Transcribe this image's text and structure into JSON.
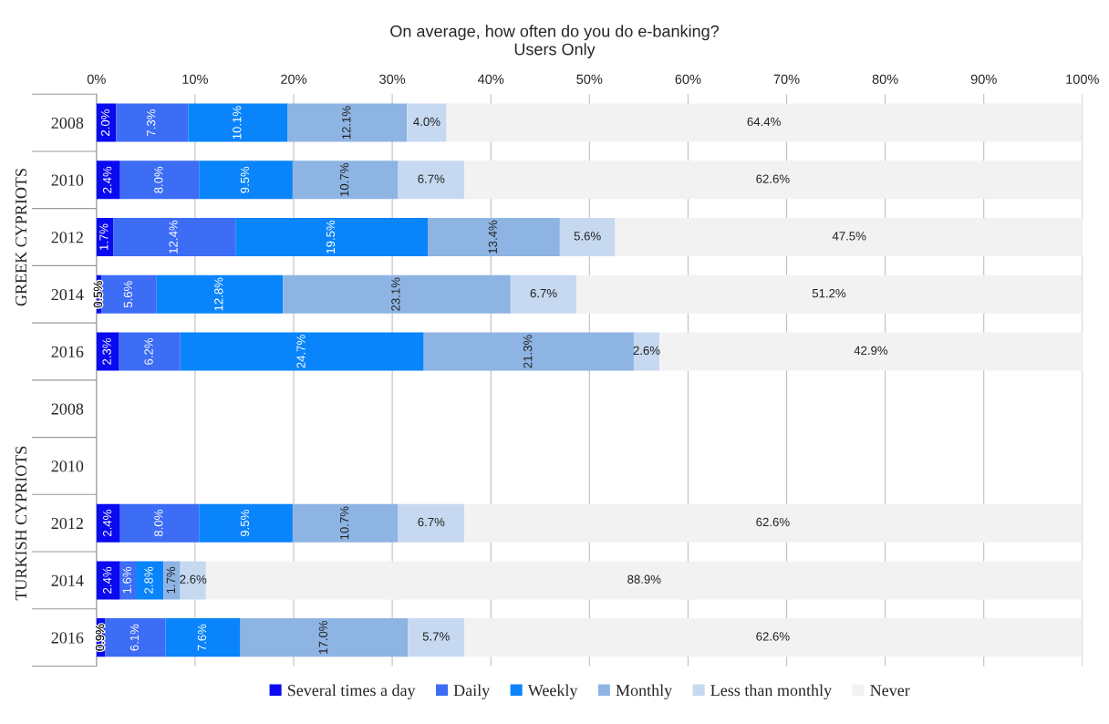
{
  "chart_data": {
    "type": "bar",
    "orientation": "horizontal",
    "stacked": true,
    "title": "On average, how often do you do e-banking?",
    "subtitle": "Users Only",
    "categories": [
      "2008",
      "2010",
      "2012",
      "2014",
      "2016",
      "2008",
      "2010",
      "2012",
      "2014",
      "2016"
    ],
    "annotations": [
      "GREEK CYPRIOTS",
      "TURKISH CYPRIOTS"
    ],
    "xlim": [
      0,
      100
    ],
    "xticks": [
      {
        "value": 0,
        "label": "0%"
      },
      {
        "value": 10,
        "label": "10%"
      },
      {
        "value": 20,
        "label": "20%"
      },
      {
        "value": 30,
        "label": "30%"
      },
      {
        "value": 40,
        "label": "40%"
      },
      {
        "value": 50,
        "label": "50%"
      },
      {
        "value": 60,
        "label": "60%"
      },
      {
        "value": 70,
        "label": "70%"
      },
      {
        "value": 80,
        "label": "80%"
      },
      {
        "value": 90,
        "label": "90%"
      },
      {
        "value": 100,
        "label": "100%"
      }
    ],
    "grid": "x",
    "legend": "bottom",
    "series": [
      {
        "name": "Several times a day",
        "color": "#0a0af0",
        "values": [
          2.0,
          2.4,
          1.7,
          0.5,
          2.3,
          null,
          null,
          2.4,
          2.4,
          0.9
        ],
        "value_labels": [
          "2.0%",
          "2.4%",
          "1.7%",
          "0.5%",
          "2.3%",
          null,
          null,
          "2.4%",
          "2.4%",
          "0.9%"
        ]
      },
      {
        "name": "Daily",
        "color": "#3d6cf5",
        "values": [
          7.3,
          8.0,
          12.4,
          5.6,
          6.2,
          null,
          null,
          8.0,
          1.6,
          6.1
        ],
        "value_labels": [
          "7.3%",
          "8.0%",
          "12.4%",
          "5.6%",
          "6.2%",
          null,
          null,
          "8.0%",
          "1.6%",
          "6.1%"
        ]
      },
      {
        "name": "Weekly",
        "color": "#0a84fa",
        "values": [
          10.1,
          9.5,
          19.5,
          12.8,
          24.7,
          null,
          null,
          9.5,
          2.8,
          7.6
        ],
        "value_labels": [
          "10.1%",
          "9.5%",
          "19.5%",
          "12.8%",
          "24.7%",
          null,
          null,
          "9.5%",
          "2.8%",
          "7.6%"
        ]
      },
      {
        "name": "Monthly",
        "color": "#8eb4e3",
        "values": [
          12.1,
          10.7,
          13.4,
          23.1,
          21.3,
          null,
          null,
          10.7,
          1.7,
          17.0
        ],
        "value_labels": [
          "12.1%",
          "10.7%",
          "13.4%",
          "23.1%",
          "21.3%",
          null,
          null,
          "10.7%",
          "1.7%",
          "17.0%"
        ]
      },
      {
        "name": "Less than monthly",
        "color": "#c6d9f1",
        "values": [
          4.0,
          6.7,
          5.6,
          6.7,
          2.6,
          null,
          null,
          6.7,
          2.6,
          5.7
        ],
        "value_labels": [
          "4.0%",
          "6.7%",
          "5.6%",
          "6.7%",
          "2.6%",
          null,
          null,
          "6.7%",
          "2.6%",
          "5.7%"
        ]
      },
      {
        "name": "Never",
        "color": "#f2f2f2",
        "values": [
          64.4,
          62.6,
          47.5,
          51.2,
          42.9,
          null,
          null,
          62.6,
          88.9,
          62.6
        ],
        "value_labels": [
          "64.4%",
          "62.6%",
          "47.5%",
          "51.2%",
          "42.9%",
          null,
          null,
          "62.6%",
          "88.9%",
          "62.6%"
        ]
      }
    ]
  }
}
